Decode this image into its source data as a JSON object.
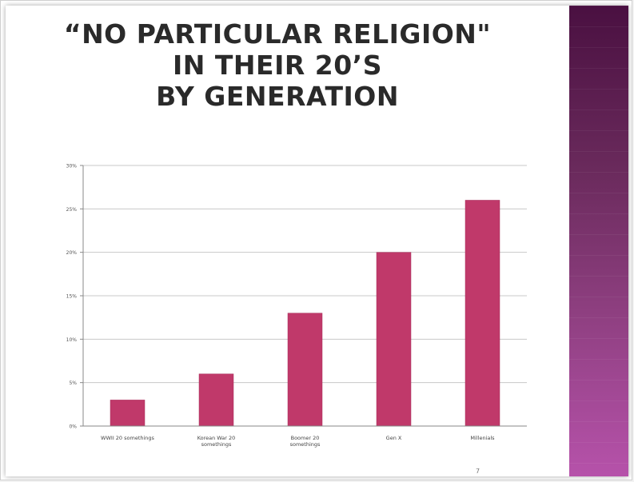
{
  "slide": {
    "title_lines": [
      "“NO PARTICULAR RELIGION\"",
      "IN THEIR 20’S",
      "BY GENERATION"
    ],
    "page_number": "7"
  },
  "colors": {
    "bar": "#c0396a",
    "bar_edge": "#a8305c",
    "grid": "#c8c8c8",
    "axis": "#888888",
    "side_band_top": "#4a1041",
    "side_band_bottom": "#b652aa"
  },
  "chart_data": {
    "type": "bar",
    "categories": [
      [
        "WWII 20 somethings"
      ],
      [
        "Korean War 20",
        "somethings"
      ],
      [
        "Boomer 20",
        "somethings"
      ],
      [
        "Gen X"
      ],
      [
        "Millenials"
      ]
    ],
    "values": [
      3,
      6,
      13,
      20,
      26
    ],
    "ylim": [
      0,
      30
    ],
    "yticks": [
      0,
      5,
      10,
      15,
      20,
      25,
      30
    ],
    "ytick_labels": [
      "0%",
      "5%",
      "10%",
      "15%",
      "20%",
      "25%",
      "30%"
    ],
    "grid": true,
    "legend": "none",
    "xlabel": "",
    "ylabel": ""
  }
}
